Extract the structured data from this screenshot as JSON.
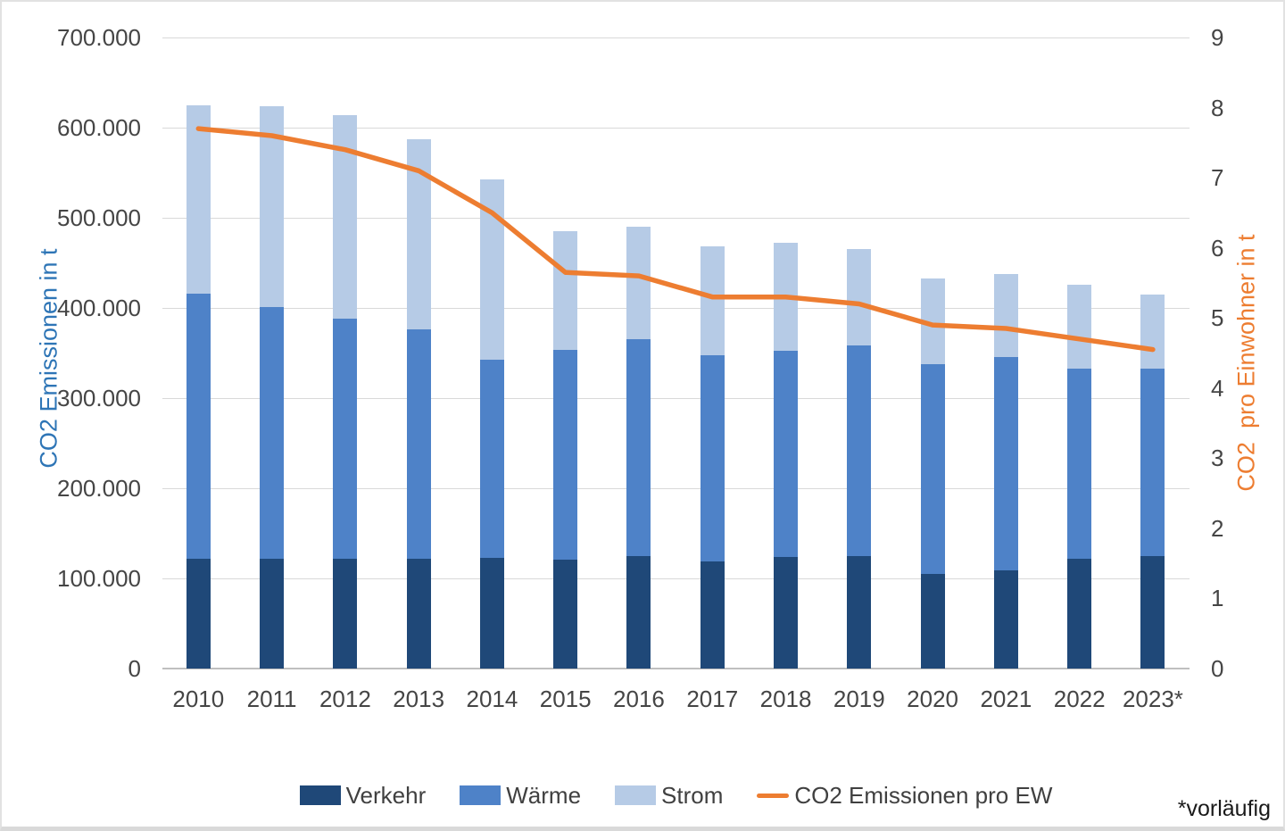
{
  "chart_data": {
    "type": "bar",
    "subtype": "stacked-bars-with-line",
    "categories": [
      "2010",
      "2011",
      "2012",
      "2013",
      "2014",
      "2015",
      "2016",
      "2017",
      "2018",
      "2019",
      "2020",
      "2021",
      "2022",
      "2023*"
    ],
    "series": [
      {
        "name": "Verkehr",
        "type": "bar",
        "axis": "left",
        "color": "#1f4878",
        "values": [
          122000,
          122000,
          122000,
          122000,
          123000,
          121000,
          125000,
          119000,
          124000,
          125000,
          105000,
          109000,
          122000,
          125000
        ]
      },
      {
        "name": "Wärme",
        "type": "bar",
        "axis": "left",
        "color": "#4e82c8",
        "values": [
          294000,
          279000,
          266000,
          254000,
          220000,
          232000,
          240000,
          229000,
          228000,
          233000,
          233000,
          237000,
          211000,
          208000
        ]
      },
      {
        "name": "Strom",
        "type": "bar",
        "axis": "left",
        "color": "#b6cbe6",
        "values": [
          209000,
          223000,
          226000,
          211000,
          200000,
          132000,
          125000,
          120000,
          120000,
          107000,
          95000,
          92000,
          93000,
          82000
        ]
      },
      {
        "name": "CO2 Emissionen pro EW",
        "type": "line",
        "axis": "right",
        "color": "#ed7d31",
        "values": [
          7.7,
          7.6,
          7.4,
          7.1,
          6.5,
          5.65,
          5.6,
          5.3,
          5.3,
          5.2,
          4.9,
          4.85,
          4.7,
          4.55
        ]
      }
    ],
    "left_axis": {
      "title": "CO2 Emissionen in t",
      "min": 0,
      "max": 700000,
      "step": 100000,
      "tick_labels": [
        "0",
        "100.000",
        "200.000",
        "300.000",
        "400.000",
        "500.000",
        "600.000",
        "700.000"
      ]
    },
    "right_axis": {
      "title": "CO2  pro Einwohner in t",
      "min": 0,
      "max": 9,
      "step": 1,
      "tick_labels": [
        "0",
        "1",
        "2",
        "3",
        "4",
        "5",
        "6",
        "7",
        "8",
        "9"
      ]
    },
    "grid": true,
    "legend_position": "bottom",
    "footnote": "*vorläufig"
  }
}
